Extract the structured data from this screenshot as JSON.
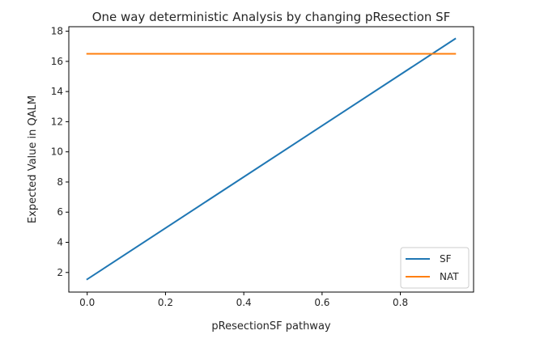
{
  "chart_data": {
    "type": "line",
    "title": "One way deterministic Analysis by changing pResection SF",
    "xlabel": "pResectionSF pathway",
    "ylabel": "Expected Value in QALM",
    "xlim": [
      -0.047,
      0.987
    ],
    "ylim": [
      0.7,
      18.3
    ],
    "xticks": [
      0.0,
      0.2,
      0.4,
      0.6,
      0.8
    ],
    "xtick_labels": [
      "0.0",
      "0.2",
      "0.4",
      "0.6",
      "0.8"
    ],
    "yticks": [
      2,
      4,
      6,
      8,
      10,
      12,
      14,
      16,
      18
    ],
    "ytick_labels": [
      "2",
      "4",
      "6",
      "8",
      "10",
      "12",
      "14",
      "16",
      "18"
    ],
    "grid": false,
    "legend_position": "lower-right",
    "series": [
      {
        "name": "SF",
        "color": "#1f77b4",
        "x": [
          0.0,
          0.94
        ],
        "y": [
          1.55,
          17.5
        ]
      },
      {
        "name": "NAT",
        "color": "#ff7f0e",
        "x": [
          0.0,
          0.94
        ],
        "y": [
          16.5,
          16.5
        ]
      }
    ]
  }
}
